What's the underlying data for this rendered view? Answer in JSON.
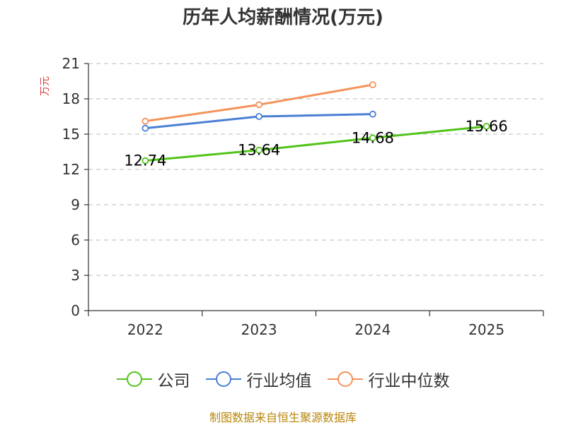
{
  "title": "历年人均薪酬情况(万元)",
  "source_note": "制图数据来自恒生聚源数据库",
  "chart_data": {
    "type": "line",
    "title": "历年人均薪酬情况(万元)",
    "xlabel": "",
    "ylabel": "万元",
    "ylim": [
      0,
      21
    ],
    "yticks": [
      0,
      3,
      6,
      9,
      12,
      15,
      18,
      21
    ],
    "categories": [
      "2022",
      "2023",
      "2024",
      "2025"
    ],
    "grid": true,
    "legend_position": "bottom",
    "series": [
      {
        "name": "公司",
        "color": "#52c41a",
        "values": [
          12.74,
          13.64,
          14.68,
          15.66
        ],
        "labels": [
          "12.74",
          "13.64",
          "14.68",
          "15.66"
        ]
      },
      {
        "name": "行业均值",
        "color": "#4a7fd4",
        "values": [
          15.5,
          16.5,
          16.7,
          null
        ]
      },
      {
        "name": "行业中位数",
        "color": "#f5925a",
        "values": [
          16.1,
          17.5,
          19.2,
          null
        ]
      }
    ]
  }
}
